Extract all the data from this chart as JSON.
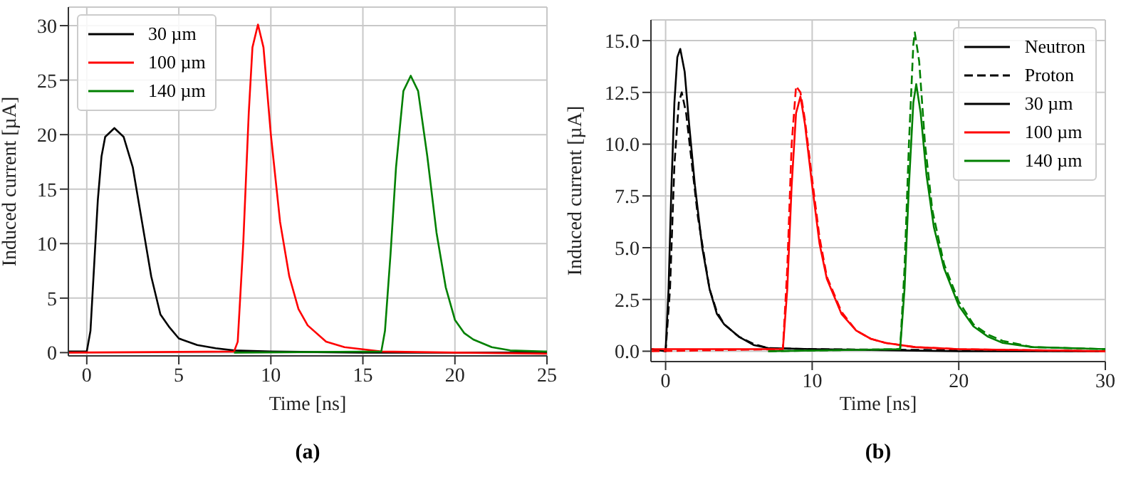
{
  "chart_data": [
    {
      "type": "line",
      "xlabel": "Time [ns]",
      "ylabel": "Induced current [µA]",
      "annotations": [
        "(a)"
      ],
      "xlim": [
        -1,
        25
      ],
      "xticks": [
        0,
        5,
        10,
        15,
        20,
        25
      ],
      "ylim": [
        -0.3,
        31.7
      ],
      "yticks": [
        0,
        5,
        10,
        15,
        20,
        25,
        30
      ],
      "grid": true,
      "legend": "top left",
      "marker": "none",
      "line_style": "solid",
      "series": [
        {
          "name": "30 µm",
          "color": "#000000",
          "x": [
            -1,
            0,
            0.2,
            0.4,
            0.6,
            0.8,
            1,
            1.5,
            2,
            2.5,
            3,
            3.5,
            4,
            4.5,
            5,
            6,
            7,
            8,
            10,
            15,
            20,
            25
          ],
          "values": [
            0.1,
            0.1,
            2,
            8,
            14,
            18,
            19.8,
            20.6,
            19.8,
            17,
            12,
            7,
            3.5,
            2.3,
            1.3,
            0.7,
            0.4,
            0.2,
            0.1,
            0,
            0,
            0
          ]
        },
        {
          "name": "100 µm",
          "color": "#ff0000",
          "x": [
            -1,
            8,
            8.2,
            8.5,
            8.8,
            9,
            9.3,
            9.6,
            10,
            10.5,
            11,
            11.5,
            12,
            13,
            14,
            15,
            16,
            20,
            25
          ],
          "values": [
            0,
            0.1,
            1,
            10,
            22,
            28,
            30.1,
            28,
            20,
            12,
            7,
            4,
            2.5,
            1,
            0.5,
            0.3,
            0.1,
            0,
            -0.1
          ]
        },
        {
          "name": "140 µm",
          "color": "#008000",
          "x": [
            8,
            16,
            16.2,
            16.5,
            16.8,
            17.2,
            17.6,
            18,
            18.5,
            19,
            19.5,
            20,
            20.5,
            21,
            22,
            23,
            25
          ],
          "values": [
            0,
            0.1,
            2,
            9,
            17,
            24,
            25.4,
            24,
            18,
            11,
            6,
            3,
            1.8,
            1.2,
            0.5,
            0.2,
            0.1
          ]
        }
      ]
    },
    {
      "type": "line",
      "xlabel": "Time [ns]",
      "ylabel": "Induced current [µA]",
      "annotations": [
        "(b)"
      ],
      "xlim": [
        -1,
        30
      ],
      "xticks": [
        0,
        10,
        20,
        30
      ],
      "ylim": [
        -0.5,
        16
      ],
      "yticks": [
        {
          "value": 0,
          "label": "0.0"
        },
        {
          "value": 2.5,
          "label": "2.5"
        },
        {
          "value": 5,
          "label": "5.0"
        },
        {
          "value": 7.5,
          "label": "7.5"
        },
        {
          "value": 10,
          "label": "10.0"
        },
        {
          "value": 12.5,
          "label": "12.5"
        },
        {
          "value": 15,
          "label": "15.0"
        }
      ],
      "grid": true,
      "legend": "top right",
      "marker": "none",
      "series": [
        {
          "name": "Neutron",
          "color": "#000000",
          "line_style": "solid"
        },
        {
          "name": "Proton",
          "color": "#000000",
          "line_style": "dashed"
        },
        {
          "name": "30 µm",
          "color": "#000000",
          "line_style": "solid",
          "x": [
            -1,
            0,
            0.2,
            0.4,
            0.6,
            0.8,
            1,
            1.3,
            1.6,
            2,
            2.5,
            3,
            3.5,
            4,
            5,
            6,
            7,
            10,
            20,
            30
          ],
          "values": [
            0.1,
            0,
            3,
            8,
            12,
            14.2,
            14.6,
            13.5,
            11,
            8,
            5,
            3,
            1.8,
            1.3,
            0.7,
            0.3,
            0.15,
            0.1,
            0,
            0
          ]
        },
        {
          "color": "#000000",
          "line_style": "dashed",
          "x": [
            -1,
            0,
            0.3,
            0.6,
            0.9,
            1.1,
            1.4,
            1.8,
            2.2,
            2.7,
            3,
            3.5,
            4,
            5,
            6,
            7,
            10,
            30
          ],
          "values": [
            0.1,
            0,
            3,
            9,
            12,
            12.5,
            11.5,
            9,
            6.5,
            4.3,
            3,
            1.9,
            1.3,
            0.7,
            0.35,
            0.15,
            0.1,
            0
          ]
        },
        {
          "name": "100 µm",
          "color": "#ff0000",
          "line_style": "solid",
          "x": [
            -1,
            8,
            8.3,
            8.6,
            8.9,
            9.2,
            9.5,
            10,
            10.5,
            11,
            12,
            13,
            14,
            15,
            17,
            20,
            30
          ],
          "values": [
            0.1,
            0.1,
            3,
            8,
            11.5,
            12.3,
            11,
            8,
            5.2,
            3.5,
            1.8,
            1,
            0.6,
            0.4,
            0.2,
            0.1,
            0
          ]
        },
        {
          "color": "#ff0000",
          "line_style": "dashed",
          "x": [
            -1,
            8,
            8.3,
            8.6,
            8.9,
            9.2,
            9.5,
            10,
            10.5,
            11,
            12,
            13,
            14,
            15,
            17,
            20,
            30
          ],
          "values": [
            0,
            0.1,
            4,
            10,
            12.8,
            12.5,
            11.2,
            8.3,
            5.5,
            3.6,
            1.9,
            1,
            0.6,
            0.4,
            0.2,
            0.1,
            0
          ]
        },
        {
          "name": "140 µm",
          "color": "#008000",
          "line_style": "solid",
          "x": [
            7,
            16,
            16.3,
            16.6,
            16.9,
            17.1,
            17.4,
            17.8,
            18.3,
            19,
            20,
            21,
            22,
            23,
            25,
            30
          ],
          "values": [
            0,
            0.1,
            3,
            8,
            12,
            12.9,
            11.5,
            8.5,
            6,
            4,
            2.2,
            1.2,
            0.7,
            0.4,
            0.2,
            0.1
          ]
        },
        {
          "color": "#008000",
          "line_style": "dashed",
          "x": [
            7,
            16,
            16.3,
            16.6,
            16.9,
            17,
            17.3,
            17.7,
            18.2,
            19,
            20,
            21,
            22,
            23,
            25,
            30
          ],
          "values": [
            0,
            0.1,
            4,
            10,
            14.8,
            15.4,
            14,
            10,
            6.8,
            4.2,
            2.4,
            1.3,
            0.8,
            0.5,
            0.2,
            0.1
          ]
        }
      ]
    }
  ]
}
